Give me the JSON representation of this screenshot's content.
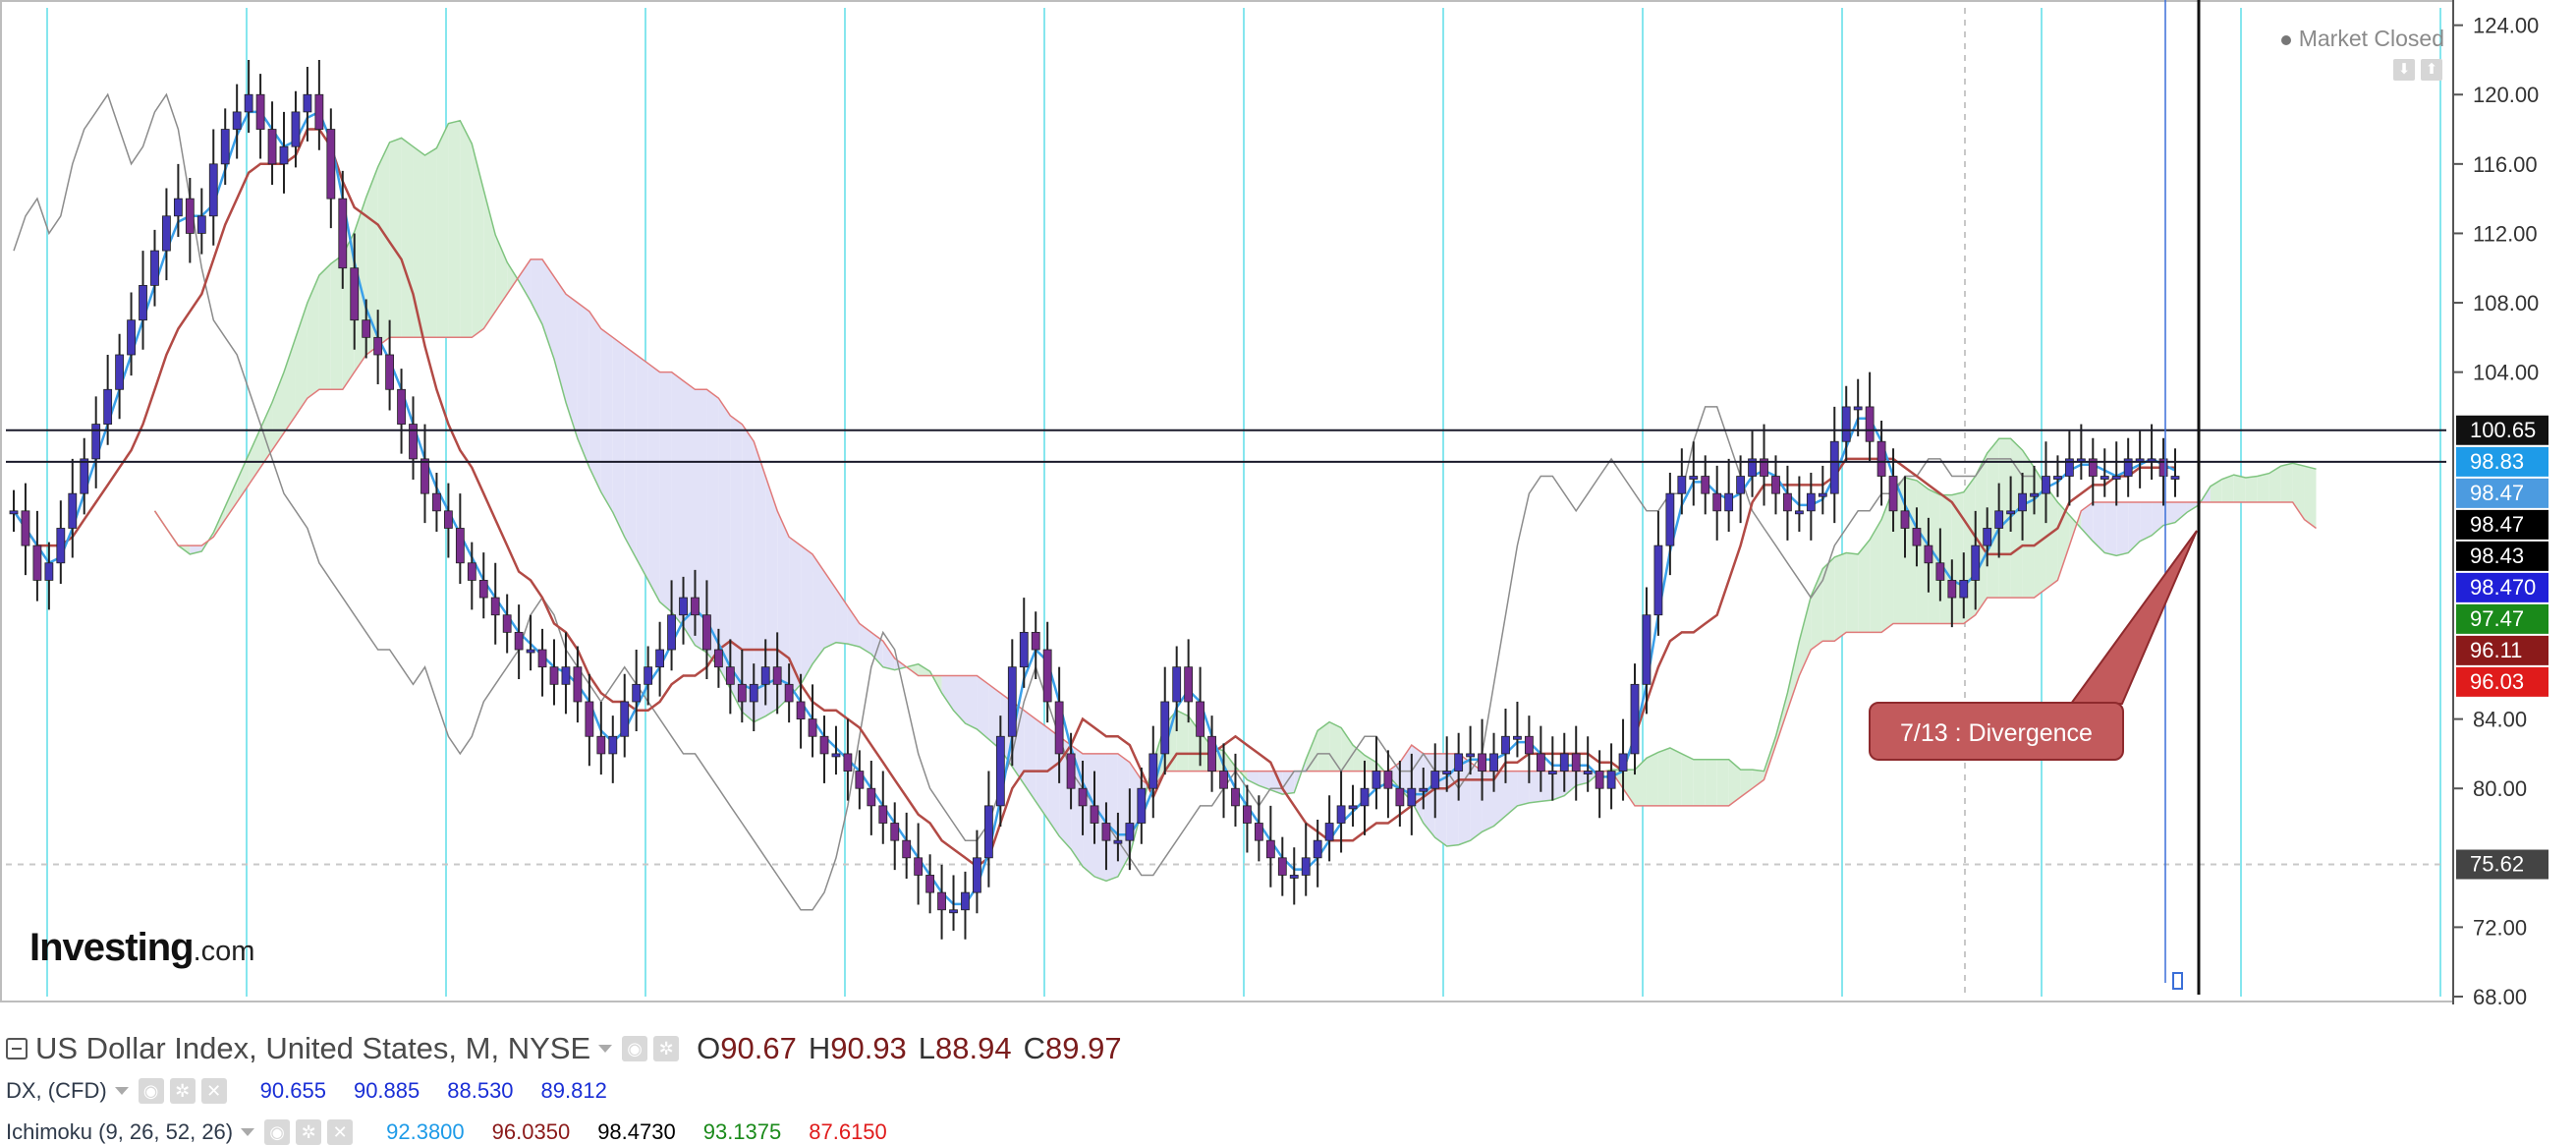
{
  "header": {
    "title": "US Dollar Index, United States, M, NYSE",
    "ohlc": [
      {
        "label": "O",
        "value": "90.67"
      },
      {
        "label": "H",
        "value": "90.93"
      },
      {
        "label": "L",
        "value": "88.94"
      },
      {
        "label": "C",
        "value": "89.97"
      }
    ],
    "market_status": "Market Closed"
  },
  "legend": {
    "symbol": "DX, (CFD)",
    "symbol_values": [
      "90.655",
      "90.885",
      "88.530",
      "89.812"
    ],
    "indicator": "Ichimoku (9, 26, 52, 26)",
    "indicator_values": [
      {
        "value": "92.3800",
        "color": "#1e9be8"
      },
      {
        "value": "96.0350",
        "color": "#8b1a1a"
      },
      {
        "value": "98.4730",
        "color": "#000000"
      },
      {
        "value": "93.1375",
        "color": "#1a8a1a"
      },
      {
        "value": "87.6150",
        "color": "#e01b1b"
      }
    ]
  },
  "annotation": {
    "text": "7/13 : Divergence"
  },
  "logo": {
    "main": "Investing",
    "suffix": ".com"
  },
  "colors": {
    "tenkan": "#3aa0ea",
    "kijun": "#b24a45",
    "chikou": "#8c8c8c",
    "candle": "#4438b8",
    "cloud_bull": "#d9efd9",
    "cloud_bear": "#e2e2f7",
    "vgrid": "#86e6ee",
    "hline": "#1a1a2a"
  },
  "chart_data": {
    "type": "candlestick",
    "ylim": [
      68,
      125
    ],
    "yticks": [
      "124.00",
      "120.00",
      "116.00",
      "112.00",
      "108.00",
      "104.00",
      "84.00",
      "80.00",
      "72.00",
      "68.00"
    ],
    "horizontal_lines": [
      100.65,
      98.83
    ],
    "price_tags": [
      {
        "label": "100.65",
        "value": 100.65,
        "bg": "#111111"
      },
      {
        "label": "98.83",
        "value": 98.83,
        "bg": "#1e9be8"
      },
      {
        "label": "98.47",
        "value": 98.47,
        "bg": "#4c9be0"
      },
      {
        "label": "98.47",
        "value": 98.47,
        "bg": "#000000"
      },
      {
        "label": "98.43",
        "value": 98.43,
        "bg": "#000000"
      },
      {
        "label": "98.470",
        "value": 98.47,
        "bg": "#2020d8"
      },
      {
        "label": "97.47",
        "value": 97.47,
        "bg": "#1a8a1a"
      },
      {
        "label": "96.11",
        "value": 96.11,
        "bg": "#8b1a1a"
      },
      {
        "label": "96.03",
        "value": 96.03,
        "bg": "#e01b1b"
      },
      {
        "label": "75.62",
        "value": 75.62,
        "bg": "#444444"
      }
    ],
    "candles": [
      96,
      94,
      92,
      93,
      95,
      97,
      99,
      101,
      103,
      105,
      107,
      109,
      111,
      113,
      114,
      112,
      113,
      116,
      118,
      119,
      120,
      118,
      116,
      117,
      119,
      120,
      118,
      114,
      110,
      107,
      106,
      105,
      103,
      101,
      99,
      97,
      96,
      95,
      93,
      92,
      91,
      90,
      89,
      88,
      88,
      87,
      86,
      87,
      85,
      83,
      82,
      83,
      85,
      86,
      87,
      88,
      90,
      91,
      90,
      88,
      87,
      86,
      85,
      86,
      87,
      86,
      85,
      84,
      83,
      82,
      82,
      81,
      80,
      79,
      78,
      77,
      76,
      75,
      74,
      73,
      73,
      74,
      76,
      79,
      83,
      87,
      89,
      88,
      85,
      82,
      80,
      79,
      78,
      77,
      77,
      78,
      80,
      82,
      85,
      87,
      85,
      83,
      81,
      80,
      79,
      78,
      77,
      76,
      75,
      75,
      76,
      77,
      78,
      79,
      79,
      80,
      81,
      80,
      79,
      80,
      80,
      81,
      81,
      82,
      82,
      81,
      82,
      83,
      83,
      82,
      81,
      81,
      82,
      81,
      81,
      80,
      81,
      82,
      86,
      90,
      94,
      97,
      98,
      98,
      97,
      96,
      97,
      98,
      99,
      98,
      97,
      96,
      96,
      97,
      97,
      100,
      102,
      102,
      100,
      98,
      96,
      95,
      94,
      93,
      92,
      91,
      92,
      94,
      95,
      96,
      96,
      97,
      97,
      98,
      98,
      99,
      99,
      98,
      98,
      98,
      99,
      99,
      99,
      98,
      98
    ]
  }
}
